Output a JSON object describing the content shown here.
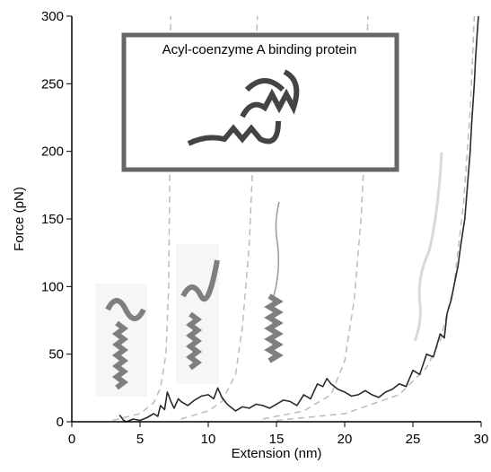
{
  "chart_data": {
    "type": "line",
    "inset_title": "Acyl-coenzyme A binding protein",
    "xlabel": "Extension (nm)",
    "ylabel": "Force (pN)",
    "xlim": [
      0,
      30
    ],
    "ylim": [
      0,
      300
    ],
    "xticks": [
      0,
      5,
      10,
      15,
      20,
      25,
      30
    ],
    "yticks": [
      0,
      50,
      100,
      150,
      200,
      250,
      300
    ],
    "series": [
      {
        "color": "#bbbbbb",
        "linestyle": "dashed",
        "x": [
          3,
          5,
          6,
          6.5,
          6.9,
          7.1,
          7.2,
          7.25
        ],
        "values": [
          1,
          6,
          14,
          25,
          50,
          100,
          200,
          300
        ]
      },
      {
        "color": "#bbbbbb",
        "linestyle": "dashed",
        "x": [
          8,
          10,
          11,
          12,
          12.5,
          13,
          13.3,
          13.6
        ],
        "values": [
          2,
          8,
          15,
          35,
          70,
          130,
          200,
          300
        ]
      },
      {
        "color": "#bbbbbb",
        "linestyle": "dashed",
        "x": [
          14,
          17,
          19,
          20,
          20.7,
          21.2,
          21.5,
          21.7
        ],
        "values": [
          2,
          8,
          20,
          45,
          90,
          150,
          210,
          300
        ]
      },
      {
        "color": "#bbbbbb",
        "linestyle": "dashed",
        "x": [
          15,
          20,
          24,
          26,
          27,
          28,
          28.7,
          29.2,
          29.5
        ],
        "values": [
          1,
          6,
          20,
          40,
          60,
          100,
          160,
          230,
          300
        ]
      },
      {
        "color": "#2a2a2a",
        "linestyle": "solid",
        "x": [
          3.5,
          3.8,
          4,
          4.5,
          5,
          5.5,
          6,
          6.3,
          6.5,
          6.8,
          7,
          7.3,
          7.5,
          7.8,
          8,
          8.5,
          9,
          9.5,
          10,
          10.4,
          10.7,
          11,
          11.3,
          11.5,
          12,
          12.5,
          13,
          13.5,
          14,
          14.5,
          15,
          15.5,
          16,
          16.5,
          17,
          17.5,
          18,
          18.4,
          18.7,
          19,
          19.5,
          20,
          20.5,
          21,
          21.5,
          22,
          22.5,
          23,
          23.5,
          24,
          24.5,
          25,
          25.5,
          26,
          26.5,
          27,
          27.3,
          27.5,
          27.8,
          28,
          28.3,
          28.5,
          28.8,
          29,
          29.2,
          29.3,
          29.5,
          29.6,
          29.7,
          29.8
        ],
        "values": [
          5,
          1,
          0,
          2,
          1,
          3,
          6,
          4,
          12,
          9,
          22,
          14,
          10,
          17,
          15,
          12,
          16,
          19,
          20,
          17,
          25,
          18,
          14,
          12,
          8,
          11,
          10,
          13,
          12,
          10,
          13,
          16,
          15,
          12,
          20,
          17,
          28,
          26,
          32,
          28,
          24,
          22,
          19,
          20,
          23,
          20,
          18,
          22,
          24,
          28,
          26,
          38,
          35,
          50,
          48,
          65,
          62,
          80,
          90,
          100,
          115,
          130,
          150,
          175,
          200,
          220,
          250,
          270,
          285,
          300
        ]
      }
    ]
  }
}
